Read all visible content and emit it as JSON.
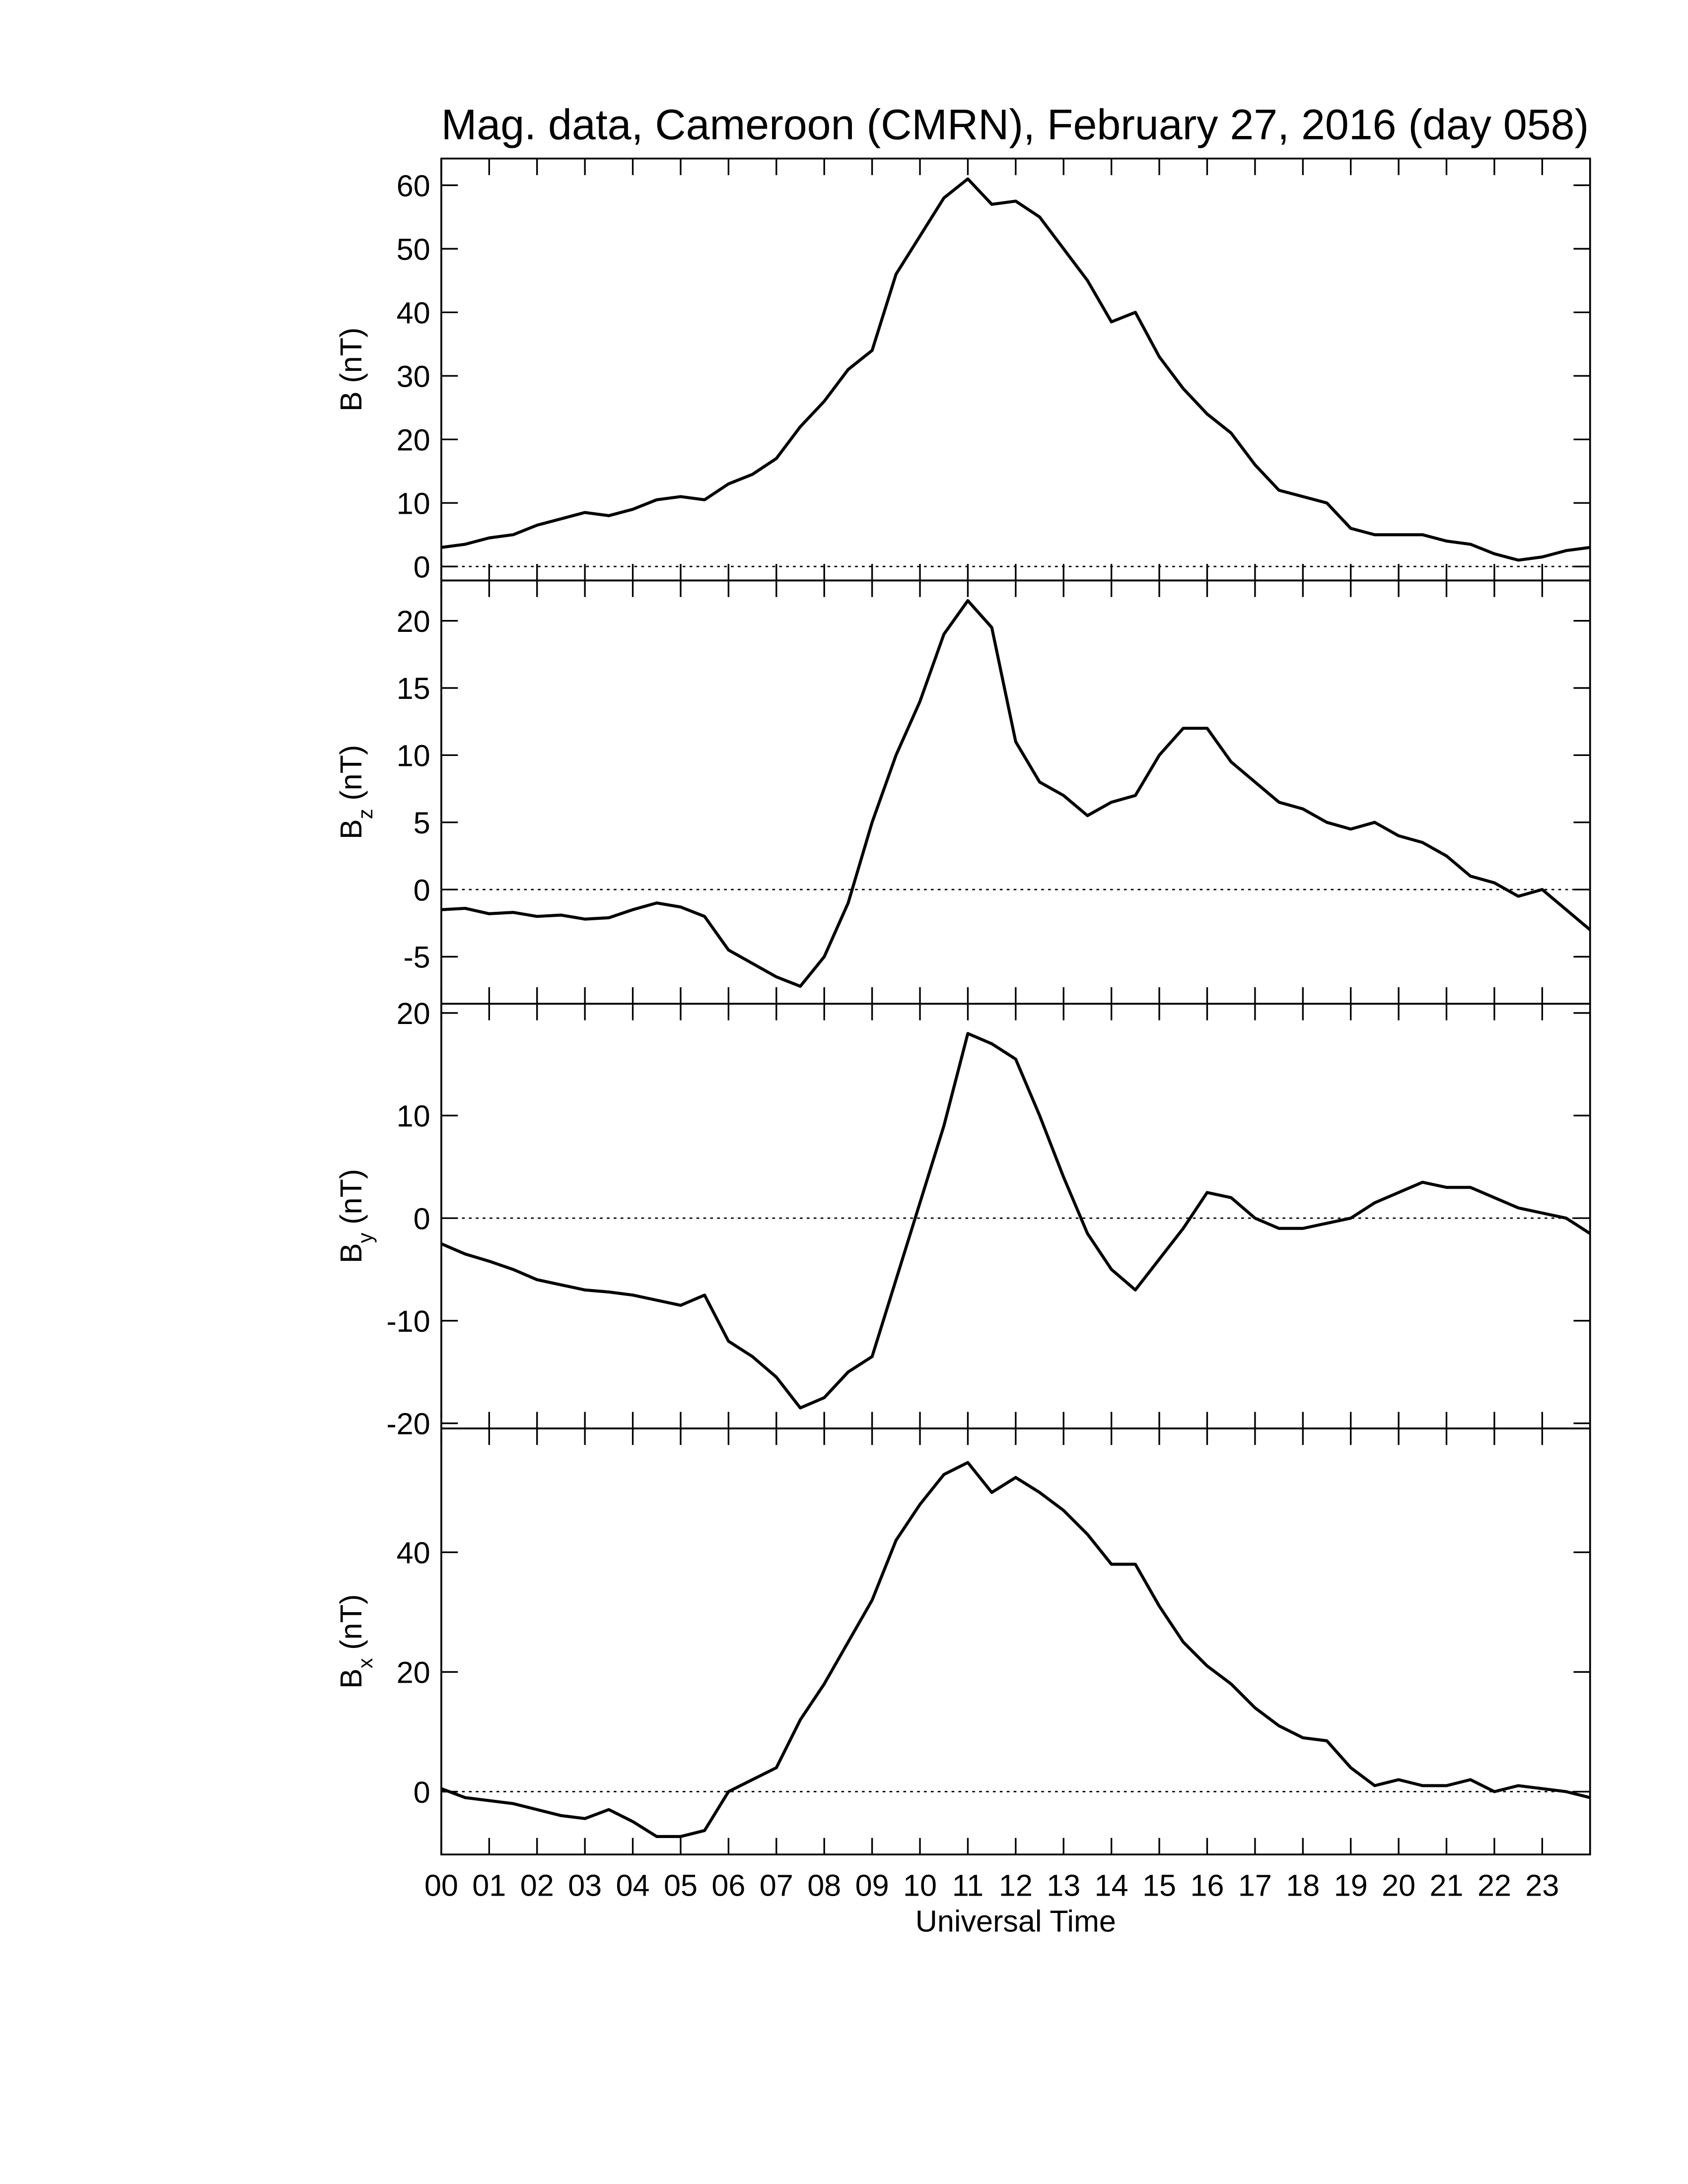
{
  "chart_data": [
    {
      "type": "line",
      "title": "Mag. data, Cameroon (CMRN), February 27, 2016 (day 058)",
      "ylabel": "B",
      "ylabel_unit": "(nT)",
      "zero_line": true,
      "xlim": [
        0,
        24
      ],
      "ylim": [
        -2.2,
        64.2
      ],
      "yticks": [
        0,
        10,
        20,
        30,
        40,
        50,
        60
      ],
      "x": [
        0,
        0.5,
        1,
        1.5,
        2,
        2.5,
        3,
        3.5,
        4,
        4.5,
        5,
        5.5,
        6,
        6.5,
        7,
        7.5,
        8,
        8.5,
        9,
        9.5,
        10,
        10.5,
        11,
        11.5,
        12,
        12.5,
        13,
        13.5,
        14,
        14.5,
        15,
        15.5,
        16,
        16.5,
        17,
        17.5,
        18,
        18.5,
        19,
        19.5,
        20,
        20.5,
        21,
        21.5,
        22,
        22.5,
        23,
        23.5,
        24
      ],
      "series": [
        {
          "color": "#000000",
          "values": [
            3,
            3.5,
            4.5,
            5,
            6.5,
            7.5,
            8.5,
            8,
            9,
            10.5,
            11,
            10.5,
            13,
            14.5,
            17,
            22,
            26,
            31,
            34,
            46,
            52,
            58,
            61,
            57,
            57.5,
            55,
            50,
            45,
            38.5,
            40,
            33,
            28,
            24,
            21,
            16,
            12,
            11,
            10,
            6,
            5,
            5,
            5,
            4,
            3.5,
            2,
            1,
            1.5,
            2.5,
            3
          ]
        }
      ]
    },
    {
      "type": "line",
      "ylabel": "B",
      "ylabel_subscript": "z",
      "ylabel_unit": "(nT)",
      "zero_line": true,
      "xlim": [
        0,
        24
      ],
      "ylim": [
        -8.5,
        23
      ],
      "yticks": [
        -5,
        0,
        5,
        10,
        15,
        20
      ],
      "x": [
        0,
        0.5,
        1,
        1.5,
        2,
        2.5,
        3,
        3.5,
        4,
        4.5,
        5,
        5.5,
        6,
        6.5,
        7,
        7.5,
        8,
        8.5,
        9,
        9.5,
        10,
        10.5,
        11,
        11.5,
        12,
        12.5,
        13,
        13.5,
        14,
        14.5,
        15,
        15.5,
        16,
        16.5,
        17,
        17.5,
        18,
        18.5,
        19,
        19.5,
        20,
        20.5,
        21,
        21.5,
        22,
        22.5,
        23,
        23.5,
        24
      ],
      "series": [
        {
          "color": "#000000",
          "values": [
            -1.5,
            -1.4,
            -1.8,
            -1.7,
            -2,
            -1.9,
            -2.2,
            -2.1,
            -1.5,
            -1,
            -1.3,
            -2,
            -4.5,
            -5.5,
            -6.5,
            -7.2,
            -5,
            -1,
            5,
            10,
            14,
            19,
            21.5,
            19.5,
            11,
            8,
            7,
            5.5,
            6.5,
            7,
            10,
            12,
            12,
            9.5,
            8,
            6.5,
            6,
            5,
            4.5,
            5,
            4,
            3.5,
            2.5,
            1,
            0.5,
            -0.5,
            0,
            -1.5,
            -3
          ]
        }
      ]
    },
    {
      "type": "line",
      "ylabel": "B",
      "ylabel_subscript": "y",
      "ylabel_unit": "(nT)",
      "zero_line": true,
      "xlim": [
        0,
        24
      ],
      "ylim": [
        -20.5,
        20.9
      ],
      "yticks": [
        -20,
        -10,
        0,
        10,
        20
      ],
      "x": [
        0,
        0.5,
        1,
        1.5,
        2,
        2.5,
        3,
        3.5,
        4,
        4.5,
        5,
        5.5,
        6,
        6.5,
        7,
        7.5,
        8,
        8.5,
        9,
        9.5,
        10,
        10.5,
        11,
        11.5,
        12,
        12.5,
        13,
        13.5,
        14,
        14.5,
        15,
        15.5,
        16,
        16.5,
        17,
        17.5,
        18,
        18.5,
        19,
        19.5,
        20,
        20.5,
        21,
        21.5,
        22,
        22.5,
        23,
        23.5,
        24
      ],
      "series": [
        {
          "color": "#000000",
          "values": [
            -2.5,
            -3.5,
            -4.2,
            -5,
            -6,
            -6.5,
            -7,
            -7.2,
            -7.5,
            -8,
            -8.5,
            -7.5,
            -12,
            -13.5,
            -15.5,
            -18.5,
            -17.5,
            -15,
            -13.5,
            -6,
            1.5,
            9,
            18,
            17,
            15.5,
            10,
            4,
            -1.5,
            -5,
            -7,
            -4,
            -1,
            2.5,
            2,
            0,
            -1,
            -1,
            -0.5,
            0,
            1.5,
            2.5,
            3.5,
            3,
            3,
            2,
            1,
            0.5,
            0,
            -1.5
          ]
        }
      ]
    },
    {
      "type": "line",
      "ylabel": "B",
      "ylabel_subscript": "x",
      "ylabel_unit": "(nT)",
      "zero_line": true,
      "xlabel": "Universal Time",
      "xlim": [
        0,
        24
      ],
      "ylim": [
        -10.5,
        60.7
      ],
      "yticks": [
        0,
        20,
        40
      ],
      "xticks": [
        {
          "value": 0,
          "label": "00"
        },
        {
          "value": 1,
          "label": "01"
        },
        {
          "value": 2,
          "label": "02"
        },
        {
          "value": 3,
          "label": "03"
        },
        {
          "value": 4,
          "label": "04"
        },
        {
          "value": 5,
          "label": "05"
        },
        {
          "value": 6,
          "label": "06"
        },
        {
          "value": 7,
          "label": "07"
        },
        {
          "value": 8,
          "label": "08"
        },
        {
          "value": 9,
          "label": "09"
        },
        {
          "value": 10,
          "label": "10"
        },
        {
          "value": 11,
          "label": "11"
        },
        {
          "value": 12,
          "label": "12"
        },
        {
          "value": 13,
          "label": "13"
        },
        {
          "value": 14,
          "label": "14"
        },
        {
          "value": 15,
          "label": "15"
        },
        {
          "value": 16,
          "label": "16"
        },
        {
          "value": 17,
          "label": "17"
        },
        {
          "value": 18,
          "label": "18"
        },
        {
          "value": 19,
          "label": "19"
        },
        {
          "value": 20,
          "label": "20"
        },
        {
          "value": 21,
          "label": "21"
        },
        {
          "value": 22,
          "label": "22"
        },
        {
          "value": 23,
          "label": "23"
        }
      ],
      "x": [
        0,
        0.5,
        1,
        1.5,
        2,
        2.5,
        3,
        3.5,
        4,
        4.5,
        5,
        5.5,
        6,
        6.5,
        7,
        7.5,
        8,
        8.5,
        9,
        9.5,
        10,
        10.5,
        11,
        11.5,
        12,
        12.5,
        13,
        13.5,
        14,
        14.5,
        15,
        15.5,
        16,
        16.5,
        17,
        17.5,
        18,
        18.5,
        19,
        19.5,
        20,
        20.5,
        21,
        21.5,
        22,
        22.5,
        23,
        23.5,
        24
      ],
      "series": [
        {
          "color": "#000000",
          "values": [
            0.5,
            -1,
            -1.5,
            -2,
            -3,
            -4,
            -4.5,
            -3,
            -5,
            -7.5,
            -7.5,
            -6.5,
            0,
            2,
            4,
            12,
            18,
            25,
            32,
            42,
            48,
            53,
            55,
            50,
            52.5,
            50,
            47,
            43,
            38,
            38,
            31,
            25,
            21,
            18,
            14,
            11,
            9,
            8.5,
            4,
            1,
            2,
            1,
            1,
            2,
            0,
            1,
            0.5,
            0,
            -1
          ]
        }
      ]
    }
  ]
}
